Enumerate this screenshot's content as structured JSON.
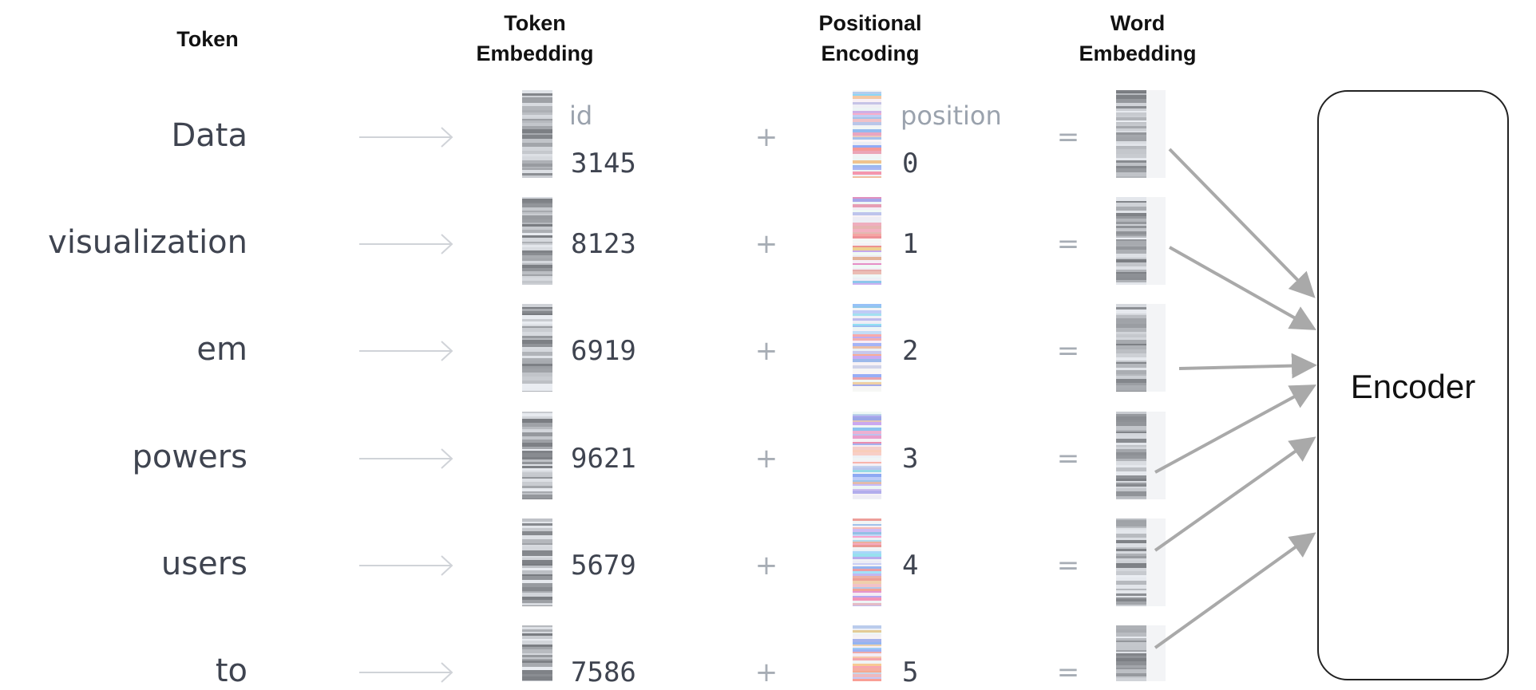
{
  "headers": {
    "token": "Token",
    "token_embedding": [
      "Token",
      "Embedding"
    ],
    "positional_encoding": [
      "Positional",
      "Encoding"
    ],
    "word_embedding": [
      "Word",
      "Embedding"
    ]
  },
  "sublabels": {
    "id": "id",
    "position": "position"
  },
  "operators": {
    "plus": "+",
    "equals": "="
  },
  "rows": [
    {
      "token": "Data",
      "id": "3145",
      "position": "0"
    },
    {
      "token": "visualization",
      "id": "8123",
      "position": "1"
    },
    {
      "token": "em",
      "id": "6919",
      "position": "2"
    },
    {
      "token": "powers",
      "id": "9621",
      "position": "3"
    },
    {
      "token": "users",
      "id": "5679",
      "position": "4"
    },
    {
      "token": "to",
      "id": "7586",
      "position": "5"
    }
  ],
  "encoder": {
    "label": "Encoder"
  },
  "colors": {
    "gray_dark": "#8a9099",
    "gray_light": "#d9dce0",
    "red": "#e8a0a0",
    "blue": "#9db4e8",
    "arrow": "#a9a9a9",
    "faint_arrow": "#d0d3d8"
  }
}
